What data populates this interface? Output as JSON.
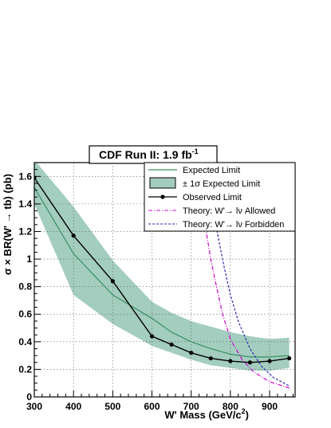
{
  "chart_data": {
    "type": "line",
    "title": "CDF Run II: 1.9 fb",
    "title_superscript": "-1",
    "xlabel": "W' Mass (GeV/c",
    "xlabel_superscript": "2",
    "xlabel_suffix": ")",
    "ylabel": "σ × BR(W' → tb)  (pb)",
    "xlim": [
      300,
      965
    ],
    "ylim": [
      0,
      1.7
    ],
    "x_ticks": [
      300,
      400,
      500,
      600,
      700,
      800,
      900
    ],
    "x_tick_labels": [
      "300",
      "400",
      "500",
      "600",
      "700",
      "800",
      "900"
    ],
    "y_ticks": [
      0,
      0.2,
      0.4,
      0.6,
      0.8,
      1.0,
      1.2,
      1.4,
      1.6
    ],
    "y_tick_labels": [
      "0",
      "0.2",
      "0.4",
      "0.6",
      "0.8",
      "1",
      "1.2",
      "1.4",
      "1.6"
    ],
    "grid": true,
    "legend_position": "top-right",
    "band": {
      "name": "± 1σ Expected Limit",
      "color": "#a3cdbe",
      "x": [
        300,
        400,
        500,
        600,
        650,
        700,
        750,
        800,
        850,
        900,
        950
      ],
      "upper": [
        1.72,
        1.38,
        0.99,
        0.69,
        0.61,
        0.55,
        0.51,
        0.47,
        0.44,
        0.42,
        0.43
      ],
      "lower": [
        1.4,
        0.74,
        0.53,
        0.37,
        0.32,
        0.27,
        0.23,
        0.21,
        0.19,
        0.19,
        0.21
      ]
    },
    "series": [
      {
        "name": "Expected Limit",
        "color": "#3a8f63",
        "style": "solid",
        "x": [
          300,
          400,
          500,
          600,
          650,
          700,
          750,
          800,
          850,
          900,
          950
        ],
        "values": [
          1.52,
          1.04,
          0.74,
          0.57,
          0.47,
          0.4,
          0.35,
          0.31,
          0.29,
          0.29,
          0.3
        ]
      },
      {
        "name": "Observed Limit",
        "color": "#000000",
        "style": "solid-markers",
        "x": [
          300,
          400,
          500,
          600,
          650,
          700,
          750,
          800,
          850,
          900,
          950
        ],
        "values": [
          1.59,
          1.17,
          0.84,
          0.44,
          0.38,
          0.32,
          0.28,
          0.26,
          0.25,
          0.26,
          0.28
        ]
      },
      {
        "name": "Theory: W'→ lν Allowed",
        "color": "#cc00cc",
        "style": "dash-dot",
        "x": [
          710,
          720,
          730,
          740,
          750,
          760,
          780,
          800,
          830,
          860,
          900,
          950
        ],
        "values": [
          1.75,
          1.55,
          1.35,
          1.17,
          1.0,
          0.86,
          0.6,
          0.42,
          0.27,
          0.18,
          0.11,
          0.065
        ]
      },
      {
        "name": "Theory: W'→ lν Forbidden",
        "color": "#2a2ab0",
        "style": "dashed",
        "x": [
          735,
          745,
          755,
          765,
          775,
          785,
          800,
          820,
          850,
          880,
          910,
          950
        ],
        "values": [
          1.75,
          1.55,
          1.38,
          1.22,
          1.07,
          0.93,
          0.74,
          0.55,
          0.35,
          0.22,
          0.14,
          0.08
        ]
      }
    ]
  }
}
